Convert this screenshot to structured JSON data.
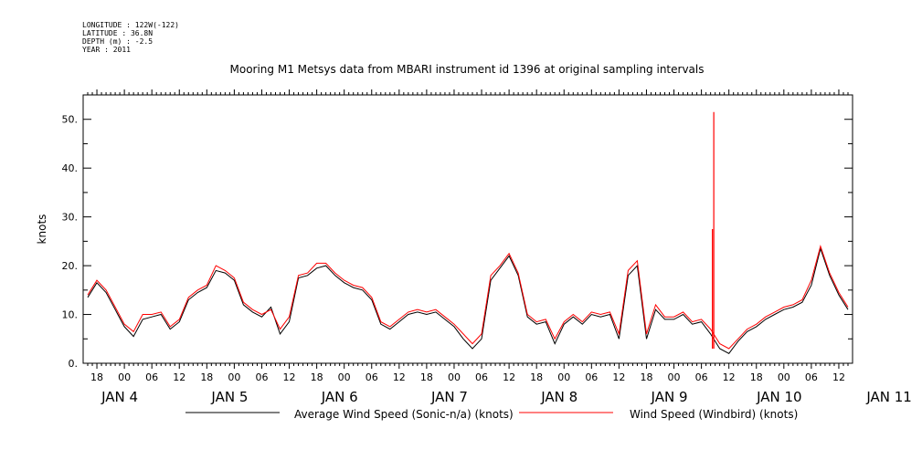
{
  "header": {
    "longitude": "LONGITUDE : 122W(-122)",
    "latitude": "LATITUDE : 36.8N",
    "depth": "DEPTH (m) : -2.5",
    "year": "YEAR : 2011"
  },
  "chart_data": {
    "type": "line",
    "title": "Mooring M1 Metsys data from MBARI instrument id 1396 at original sampling intervals",
    "ylabel": "knots",
    "ylim": [
      0,
      55
    ],
    "yticks": [
      "0.",
      "10.",
      "20.",
      "30.",
      "40.",
      "50."
    ],
    "x_range_hours": [
      -9,
      159
    ],
    "x_hour_ticks": [
      "18",
      "00",
      "06",
      "12",
      "18",
      "00",
      "06",
      "12",
      "18",
      "00",
      "06",
      "12",
      "18",
      "00",
      "06",
      "12",
      "18",
      "00",
      "06",
      "12",
      "18",
      "00",
      "06",
      "12",
      "18",
      "00",
      "06",
      "12"
    ],
    "x_day_labels": [
      "JAN  4",
      "JAN  5",
      "JAN  6",
      "JAN  7",
      "JAN  8",
      "JAN  9",
      "JAN 10",
      "JAN 11"
    ],
    "grid": false,
    "legend_position": "bottom",
    "series": [
      {
        "name": "Average Wind Speed (Sonic-n/a) (knots)",
        "color": "#000000",
        "x": [
          -8,
          -6,
          -4,
          -2,
          0,
          2,
          4,
          6,
          8,
          10,
          12,
          14,
          16,
          18,
          20,
          22,
          24,
          26,
          28,
          30,
          32,
          34,
          36,
          38,
          40,
          42,
          44,
          46,
          48,
          50,
          52,
          54,
          56,
          58,
          60,
          62,
          64,
          66,
          68,
          70,
          72,
          74,
          76,
          78,
          80,
          82,
          84,
          86,
          88,
          90,
          92,
          94,
          96,
          98,
          100,
          102,
          104,
          106,
          108,
          110,
          112,
          114,
          116,
          118,
          120,
          122,
          124,
          126,
          128,
          130,
          132,
          134,
          136,
          138,
          140,
          142,
          144,
          146,
          148,
          150,
          152,
          154,
          156,
          158
        ],
        "values": [
          13.5,
          16.5,
          14.5,
          11.0,
          7.5,
          5.5,
          9.0,
          9.5,
          10.0,
          7.0,
          8.5,
          13.0,
          14.5,
          15.5,
          19.0,
          18.5,
          17.0,
          12.0,
          10.5,
          9.5,
          11.5,
          6.0,
          8.5,
          17.5,
          18.0,
          19.5,
          20.0,
          18.0,
          16.5,
          15.5,
          15.0,
          13.0,
          8.0,
          7.0,
          8.5,
          10.0,
          10.5,
          10.0,
          10.5,
          9.0,
          7.5,
          5.0,
          3.0,
          5.0,
          17.0,
          19.5,
          22.0,
          18.0,
          9.5,
          8.0,
          8.5,
          4.0,
          8.0,
          9.5,
          8.0,
          10.0,
          9.5,
          10.0,
          5.0,
          18.0,
          20.0,
          5.0,
          11.0,
          9.0,
          9.0,
          10.0,
          8.0,
          8.5,
          6.0,
          3.0,
          2.0,
          4.5,
          6.5,
          7.5,
          9.0,
          10.0,
          11.0,
          11.5,
          12.5,
          16.0,
          23.5,
          18.0,
          14.0,
          11.0
        ]
      },
      {
        "name": "Wind Speed (Windbird) (knots)",
        "color": "#ff0000",
        "x": [
          -8,
          -6,
          -4,
          -2,
          0,
          2,
          4,
          6,
          8,
          10,
          12,
          14,
          16,
          18,
          20,
          22,
          24,
          26,
          28,
          30,
          32,
          34,
          36,
          38,
          40,
          42,
          44,
          46,
          48,
          50,
          52,
          54,
          56,
          58,
          60,
          62,
          64,
          66,
          68,
          70,
          72,
          74,
          76,
          78,
          80,
          82,
          84,
          86,
          88,
          90,
          92,
          94,
          96,
          98,
          100,
          102,
          104,
          106,
          108,
          110,
          112,
          114,
          116,
          118,
          120,
          122,
          124,
          126,
          128,
          130,
          132,
          134,
          136,
          138,
          140,
          142,
          144,
          146,
          148,
          150,
          152,
          154,
          156,
          158
        ],
        "values": [
          14.0,
          17.0,
          15.0,
          11.5,
          8.0,
          6.5,
          10.0,
          10.0,
          10.5,
          7.5,
          9.0,
          13.5,
          15.0,
          16.0,
          20.0,
          19.0,
          17.5,
          12.5,
          11.0,
          10.0,
          11.0,
          7.0,
          9.5,
          18.0,
          18.5,
          20.5,
          20.5,
          18.5,
          17.0,
          16.0,
          15.5,
          13.5,
          8.5,
          7.5,
          9.0,
          10.5,
          11.0,
          10.5,
          11.0,
          9.5,
          8.0,
          6.0,
          4.0,
          6.0,
          18.0,
          20.0,
          22.5,
          18.5,
          10.0,
          8.5,
          9.0,
          5.0,
          8.5,
          10.0,
          8.5,
          10.5,
          10.0,
          10.5,
          6.0,
          19.0,
          21.0,
          6.0,
          12.0,
          9.5,
          9.5,
          10.5,
          8.5,
          9.0,
          7.0,
          4.0,
          3.0,
          5.0,
          7.0,
          8.0,
          9.5,
          10.5,
          11.5,
          12.0,
          13.0,
          17.0,
          24.0,
          18.5,
          14.5,
          11.5
        ]
      }
    ],
    "spikes": [
      {
        "series": 1,
        "x": 128.7,
        "peak": 51.5
      },
      {
        "series": 1,
        "x": 128.4,
        "peak": 27.5
      }
    ]
  }
}
